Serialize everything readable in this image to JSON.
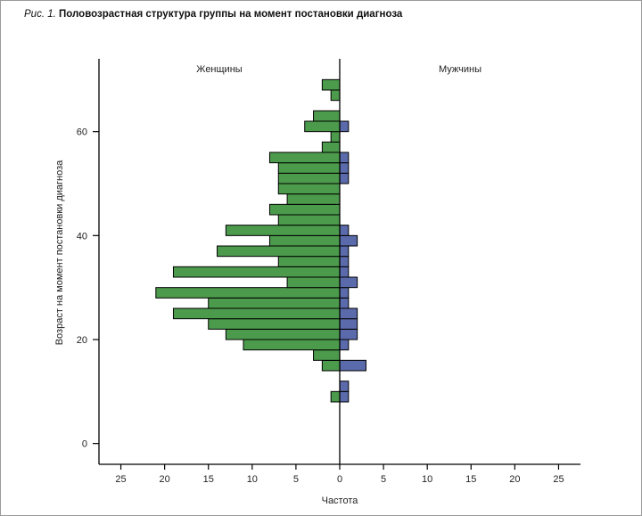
{
  "caption": {
    "lead": "Рис. 1.",
    "title": "Половозрастная структура группы на момент постановки диагноза"
  },
  "chart_data": {
    "type": "bar",
    "orientation": "horizontal-pyramid",
    "xlabel": "Частота",
    "ylabel": "Возраст на момент постановки диагноза",
    "xlim": [
      -27.5,
      27.5
    ],
    "ylim": [
      -4,
      74
    ],
    "x_ticks": [
      -25,
      -20,
      -15,
      -10,
      -5,
      0,
      5,
      10,
      15,
      20,
      25
    ],
    "x_tick_labels": [
      "25",
      "20",
      "15",
      "10",
      "5",
      "0",
      "5",
      "10",
      "15",
      "20",
      "25"
    ],
    "y_ticks": [
      0,
      20,
      40,
      60
    ],
    "y_tick_labels": [
      "0",
      "20",
      "40",
      "60"
    ],
    "bin_width": 2,
    "groups": [
      {
        "name": "Женщины",
        "side": "left",
        "color": "#4c9a4c",
        "bins": [
          {
            "age_start": 8,
            "count": 1
          },
          {
            "age_start": 14,
            "count": 2
          },
          {
            "age_start": 16,
            "count": 3
          },
          {
            "age_start": 18,
            "count": 11
          },
          {
            "age_start": 20,
            "count": 13
          },
          {
            "age_start": 22,
            "count": 15
          },
          {
            "age_start": 24,
            "count": 19
          },
          {
            "age_start": 26,
            "count": 15
          },
          {
            "age_start": 28,
            "count": 21
          },
          {
            "age_start": 30,
            "count": 6
          },
          {
            "age_start": 32,
            "count": 19
          },
          {
            "age_start": 34,
            "count": 7
          },
          {
            "age_start": 36,
            "count": 14
          },
          {
            "age_start": 38,
            "count": 8
          },
          {
            "age_start": 40,
            "count": 13
          },
          {
            "age_start": 42,
            "count": 7
          },
          {
            "age_start": 44,
            "count": 8
          },
          {
            "age_start": 46,
            "count": 6
          },
          {
            "age_start": 48,
            "count": 7
          },
          {
            "age_start": 50,
            "count": 7
          },
          {
            "age_start": 52,
            "count": 7
          },
          {
            "age_start": 54,
            "count": 8
          },
          {
            "age_start": 56,
            "count": 2
          },
          {
            "age_start": 58,
            "count": 1
          },
          {
            "age_start": 60,
            "count": 4
          },
          {
            "age_start": 62,
            "count": 3
          },
          {
            "age_start": 66,
            "count": 1
          },
          {
            "age_start": 68,
            "count": 2
          }
        ]
      },
      {
        "name": "Мужчины",
        "side": "right",
        "color": "#5a6aaa",
        "bins": [
          {
            "age_start": 8,
            "count": 1
          },
          {
            "age_start": 10,
            "count": 1
          },
          {
            "age_start": 14,
            "count": 3
          },
          {
            "age_start": 18,
            "count": 1
          },
          {
            "age_start": 20,
            "count": 2
          },
          {
            "age_start": 22,
            "count": 2
          },
          {
            "age_start": 24,
            "count": 2
          },
          {
            "age_start": 26,
            "count": 1
          },
          {
            "age_start": 28,
            "count": 1
          },
          {
            "age_start": 30,
            "count": 2
          },
          {
            "age_start": 32,
            "count": 1
          },
          {
            "age_start": 34,
            "count": 1
          },
          {
            "age_start": 36,
            "count": 1
          },
          {
            "age_start": 38,
            "count": 2
          },
          {
            "age_start": 40,
            "count": 1
          },
          {
            "age_start": 50,
            "count": 1
          },
          {
            "age_start": 52,
            "count": 1
          },
          {
            "age_start": 54,
            "count": 1
          },
          {
            "age_start": 60,
            "count": 1
          }
        ]
      }
    ]
  }
}
